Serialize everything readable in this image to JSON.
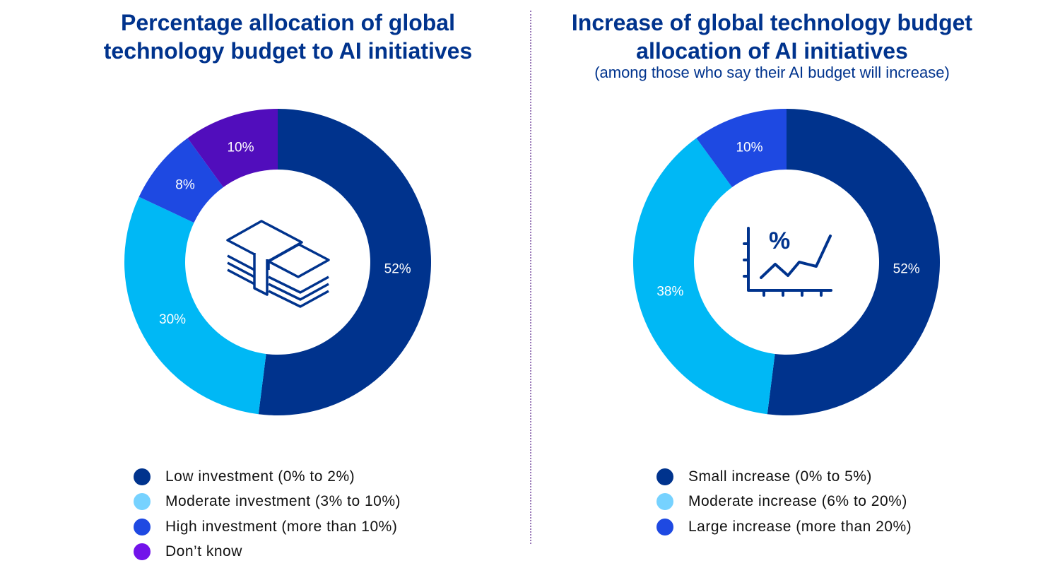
{
  "chart_data": [
    {
      "type": "pie",
      "variant": "donut",
      "title": "Percentage allocation of global technology budget to AI initiatives",
      "center_icon": "money-stack-icon",
      "legend_position": "bottom",
      "slices": [
        {
          "label": "Low investment (0% to 2%)",
          "value": 52,
          "data_label": "52%",
          "color": "#00338D",
          "legend_color": "#00338D"
        },
        {
          "label": "Moderate investment (3% to 10%)",
          "value": 30,
          "data_label": "30%",
          "color": "#00B8F5",
          "legend_color": "#76D2FF"
        },
        {
          "label": "High investment (more than 10%)",
          "value": 8,
          "data_label": "8%",
          "color": "#1E49E2",
          "legend_color": "#1E49E2"
        },
        {
          "label": "Don’t know",
          "value": 10,
          "data_label": "10%",
          "color": "#510DBC",
          "legend_color": "#7213EA"
        }
      ]
    },
    {
      "type": "pie",
      "variant": "donut",
      "title": "Increase of global technology budget allocation of AI initiatives",
      "subtitle": "(among those who say their AI budget will increase)",
      "center_icon": "percent-line-chart-icon",
      "legend_position": "bottom",
      "slices": [
        {
          "label": "Small increase (0% to 5%)",
          "value": 52,
          "data_label": "52%",
          "color": "#00338D",
          "legend_color": "#00338D"
        },
        {
          "label": "Moderate increase (6% to 20%)",
          "value": 38,
          "data_label": "38%",
          "color": "#00B8F5",
          "legend_color": "#76D2FF"
        },
        {
          "label": "Large increase (more than 20%)",
          "value": 10,
          "data_label": "10%",
          "color": "#1E49E2",
          "legend_color": "#1E49E2"
        }
      ]
    }
  ]
}
